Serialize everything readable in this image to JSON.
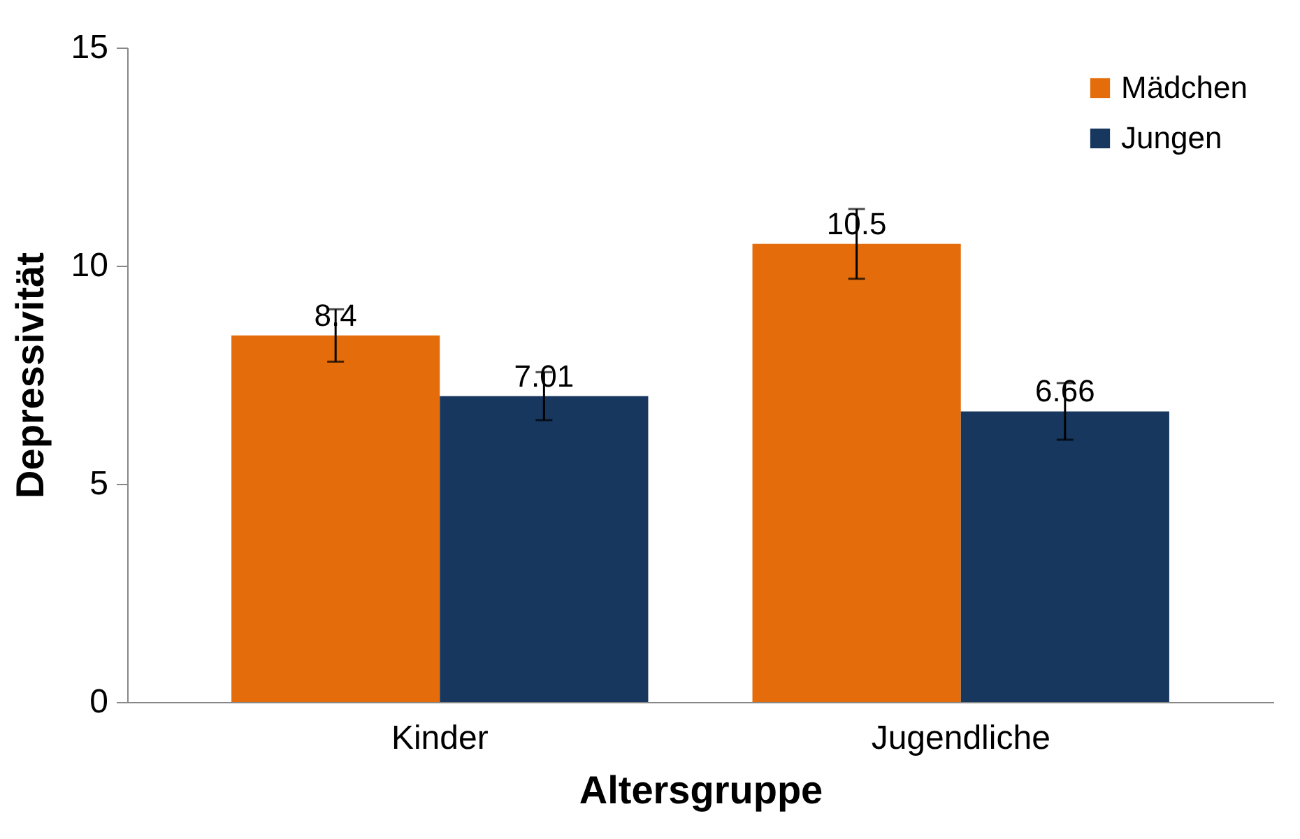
{
  "chart_data": {
    "type": "bar",
    "xlabel": "Altersgruppe",
    "ylabel": "Depressivität",
    "categories": [
      "Kinder",
      "Jugendliche"
    ],
    "series": [
      {
        "name": "Mädchen",
        "color": "#e46c0a",
        "values": [
          8.4,
          10.5
        ],
        "errors": [
          0.6,
          0.8
        ]
      },
      {
        "name": "Jungen",
        "color": "#17375e",
        "values": [
          7.01,
          6.66
        ],
        "errors": [
          0.55,
          0.65
        ]
      }
    ],
    "ylim": [
      0,
      15
    ],
    "yticks": [
      0,
      5,
      10,
      15
    ],
    "grid": false,
    "legend": "top right",
    "data_labels": true
  }
}
